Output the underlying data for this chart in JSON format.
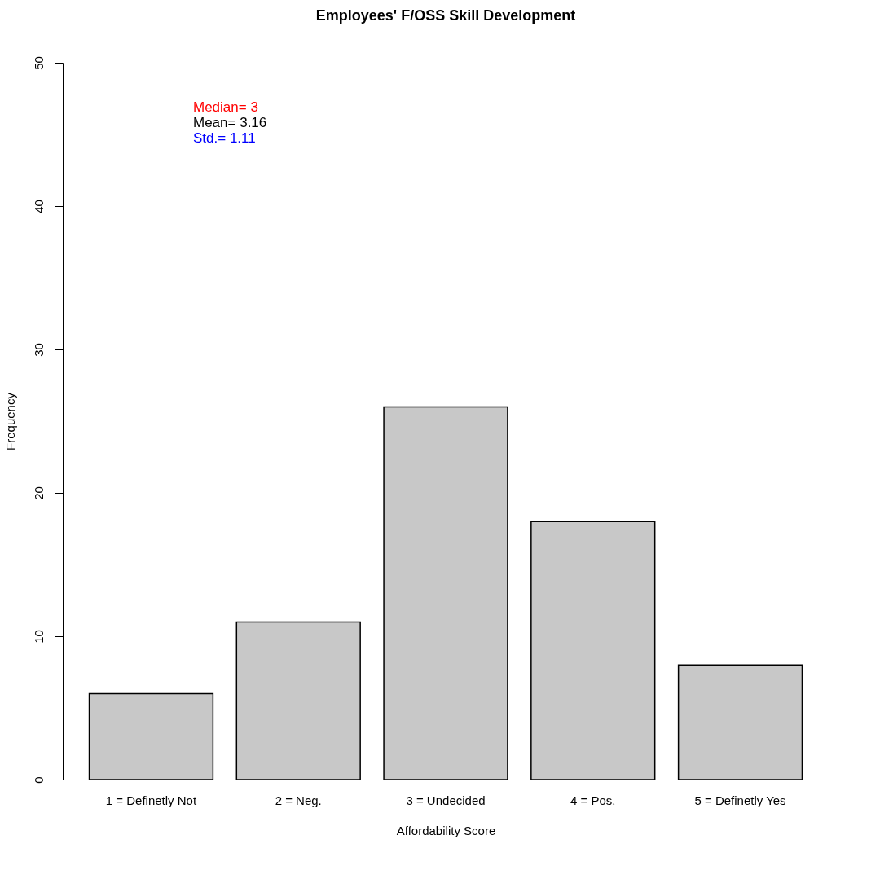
{
  "chart_data": {
    "type": "bar",
    "title": "Employees' F/OSS Skill Development",
    "xlabel": "Affordability Score",
    "ylabel": "Frequency",
    "categories": [
      "1 = Definetly Not",
      "2 = Neg.",
      "3 = Undecided",
      "4 = Pos.",
      "5 = Definetly Yes"
    ],
    "values": [
      6,
      11,
      26,
      18,
      8
    ],
    "color": "#c8c8c8",
    "ylim": [
      0,
      50
    ],
    "yticks": [
      0,
      10,
      20,
      30,
      40,
      50
    ],
    "grid": false,
    "annotations": [
      "Median= 3",
      "Mean= 3.16",
      "Std.= 1.11"
    ]
  }
}
